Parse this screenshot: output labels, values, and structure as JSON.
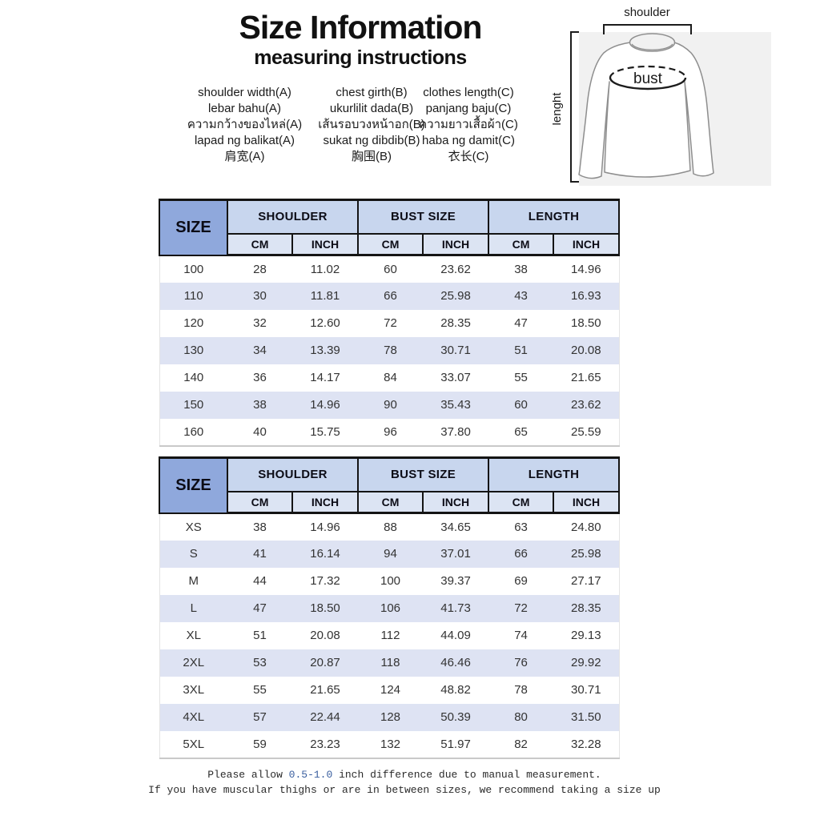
{
  "title": "Size Information",
  "subtitle": "measuring instructions",
  "measure_labels": {
    "shoulder": [
      "shoulder width(A)",
      "lebar bahu(A)",
      "ความกว้างของไหล่(A)",
      "lapad ng balikat(A)",
      "肩宽(A)"
    ],
    "chest": [
      "chest girth(B)",
      "ukurlilit dada(B)",
      "เส้นรอบวงหน้าอก(B)",
      "sukat ng dibdib(B)",
      "胸围(B)"
    ],
    "length": [
      "clothes length(C)",
      "panjang baju(C)",
      "ความยาวเสื้อผ้า(C)",
      "haba ng damit(C)",
      "衣长(C)"
    ]
  },
  "diagram": {
    "shoulder_label": "shoulder",
    "bust_label": "bust",
    "length_label": "lenght"
  },
  "tables": {
    "headers": {
      "size": "SIZE",
      "shoulder": "SHOULDER",
      "bust": "BUST SIZE",
      "length": "LENGTH",
      "cm": "CM",
      "inch": "INCH"
    },
    "numeric": {
      "rows": [
        [
          "100",
          "28",
          "11.02",
          "60",
          "23.62",
          "38",
          "14.96"
        ],
        [
          "110",
          "30",
          "11.81",
          "66",
          "25.98",
          "43",
          "16.93"
        ],
        [
          "120",
          "32",
          "12.60",
          "72",
          "28.35",
          "47",
          "18.50"
        ],
        [
          "130",
          "34",
          "13.39",
          "78",
          "30.71",
          "51",
          "20.08"
        ],
        [
          "140",
          "36",
          "14.17",
          "84",
          "33.07",
          "55",
          "21.65"
        ],
        [
          "150",
          "38",
          "14.96",
          "90",
          "35.43",
          "60",
          "23.62"
        ],
        [
          "160",
          "40",
          "15.75",
          "96",
          "37.80",
          "65",
          "25.59"
        ]
      ]
    },
    "letter": {
      "rows": [
        [
          "XS",
          "38",
          "14.96",
          "88",
          "34.65",
          "63",
          "24.80"
        ],
        [
          "S",
          "41",
          "16.14",
          "94",
          "37.01",
          "66",
          "25.98"
        ],
        [
          "M",
          "44",
          "17.32",
          "100",
          "39.37",
          "69",
          "27.17"
        ],
        [
          "L",
          "47",
          "18.50",
          "106",
          "41.73",
          "72",
          "28.35"
        ],
        [
          "XL",
          "51",
          "20.08",
          "112",
          "44.09",
          "74",
          "29.13"
        ],
        [
          "2XL",
          "53",
          "20.87",
          "118",
          "46.46",
          "76",
          "29.92"
        ],
        [
          "3XL",
          "55",
          "21.65",
          "124",
          "48.82",
          "78",
          "30.71"
        ],
        [
          "4XL",
          "57",
          "22.44",
          "128",
          "50.39",
          "80",
          "31.50"
        ],
        [
          "5XL",
          "59",
          "23.23",
          "132",
          "51.97",
          "82",
          "32.28"
        ]
      ]
    }
  },
  "notes": {
    "line1_prefix": "Please allow ",
    "line1_highlight": "0.5-1.0",
    "line1_suffix": " inch difference due to manual measurement.",
    "line2": "If you have muscular thighs or are in between sizes, we recommend taking a size up"
  },
  "colors": {
    "size_header_bg": "#8FA8DC",
    "group_header_bg": "#C8D6EE",
    "unit_header_bg": "#DCE4F3",
    "alt_row_bg": "#DEE3F3",
    "header_border": "#141414",
    "note_highlight": "#3A5F9F"
  }
}
